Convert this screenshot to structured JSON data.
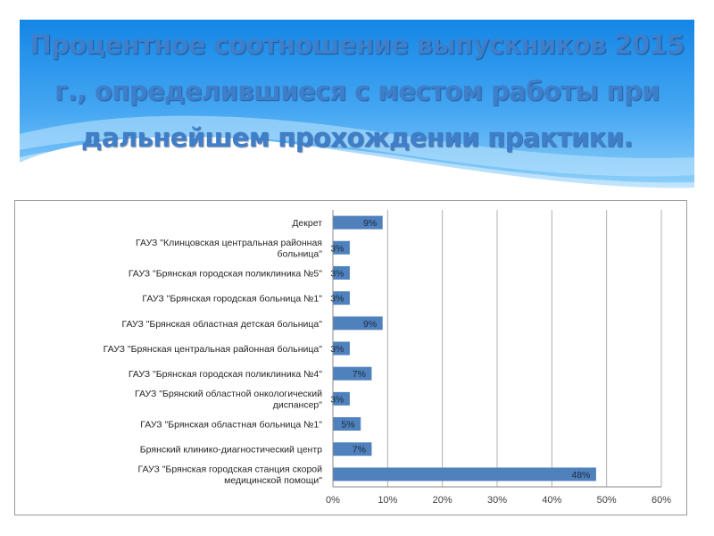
{
  "slide": {
    "title": "Процентное соотношение выпускников 2015 г., определившиеся с местом работы при дальнейшем прохождении практики."
  },
  "colors": {
    "bar": "#4f81bd",
    "gridline": "#b0b0b0",
    "title_text": "#3f7fc9"
  },
  "chart_data": {
    "type": "bar",
    "orientation": "horizontal",
    "categories": [
      "Декрет",
      "ГАУЗ \"Клинцовская центральная районная больница\"",
      "ГАУЗ \"Брянская городская поликлиника №5\"",
      "ГАУЗ \"Брянская городская больница №1\"",
      "ГАУЗ \"Брянская областная детская больница\"",
      "ГАУЗ \"Брянская центральная районная больница\"",
      "ГАУЗ \"Брянская городская поликлиника №4\"",
      "ГАУЗ \"Брянский областной онкологический диспансер\"",
      "ГАУЗ \"Брянская областная больница №1\"",
      "Брянский клинико-диагностический центр",
      "ГАУЗ \"Брянская городская станция скорой медицинской помощи\""
    ],
    "category_lines": [
      [
        "Декрет"
      ],
      [
        "ГАУЗ \"Клинцовская центральная районная",
        "больница\""
      ],
      [
        "ГАУЗ \"Брянская городская поликлиника №5\""
      ],
      [
        "ГАУЗ \"Брянская городская больница №1\""
      ],
      [
        "ГАУЗ \"Брянская областная детская больница\""
      ],
      [
        "ГАУЗ \"Брянская центральная районная больница\""
      ],
      [
        "ГАУЗ \"Брянская городская поликлиника №4\""
      ],
      [
        "ГАУЗ \"Брянский областной онкологический",
        "диспансер\""
      ],
      [
        "ГАУЗ \"Брянская областная больница №1\""
      ],
      [
        "Брянский клинико-диагностический центр"
      ],
      [
        "ГАУЗ \"Брянская городская станция скорой",
        "медицинской помощи\""
      ]
    ],
    "values": [
      9,
      3,
      3,
      3,
      9,
      3,
      7,
      3,
      5,
      7,
      48
    ],
    "data_labels": [
      "9%",
      "3%",
      "3%",
      "3%",
      "9%",
      "3%",
      "7%",
      "3%",
      "5%",
      "7%",
      "48%"
    ],
    "xlim": [
      0,
      60
    ],
    "xticks": [
      0,
      10,
      20,
      30,
      40,
      50,
      60
    ],
    "xtick_labels": [
      "0%",
      "10%",
      "20%",
      "30%",
      "40%",
      "50%",
      "60%"
    ],
    "grid": true,
    "legend": false
  }
}
